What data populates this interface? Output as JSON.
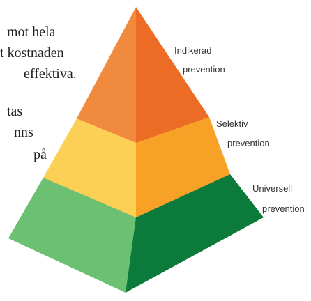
{
  "text_lines": [
    "mot hela",
    "t kostnaden",
    "effektiva.",
    "tas",
    "nns",
    "på"
  ],
  "labels": [
    {
      "line1": "Indikerad",
      "line2": "prevention"
    },
    {
      "line1": "Selektiv",
      "line2": "prevention"
    },
    {
      "line1": "Universell",
      "line2": "prevention"
    }
  ]
}
